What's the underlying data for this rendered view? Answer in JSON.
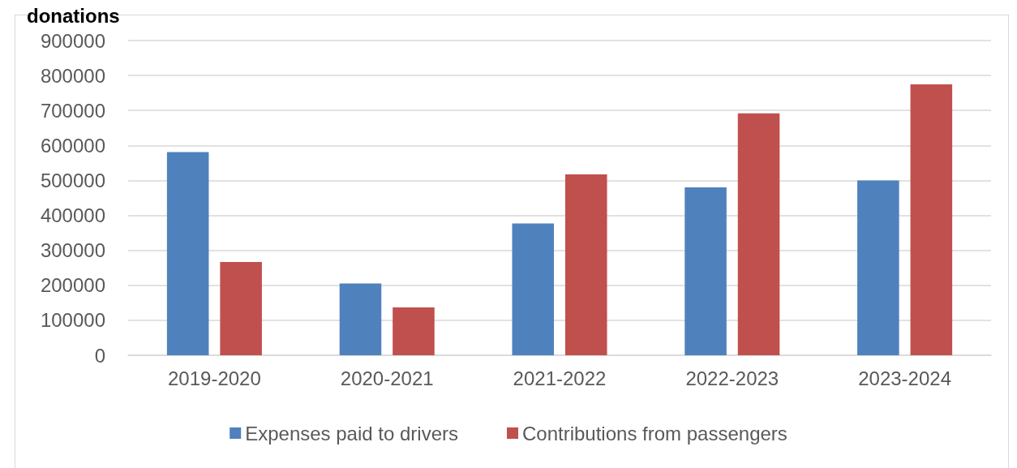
{
  "chart_data": {
    "type": "bar",
    "title": "donations",
    "categories": [
      "2019-2020",
      "2020-2021",
      "2021-2022",
      "2022-2023",
      "2023-2024"
    ],
    "series": [
      {
        "name": "Expenses paid to drivers",
        "color": "#4f81bd",
        "values": [
          581000,
          205000,
          377000,
          480000,
          500000
        ]
      },
      {
        "name": "Contributions from passengers",
        "color": "#c0504d",
        "values": [
          267000,
          137000,
          517000,
          692000,
          775000
        ]
      }
    ],
    "ylim": [
      0,
      900000
    ],
    "yticks": [
      0,
      100000,
      200000,
      300000,
      400000,
      500000,
      600000,
      700000,
      800000,
      900000
    ],
    "grid": "y",
    "legend": "bottom"
  }
}
